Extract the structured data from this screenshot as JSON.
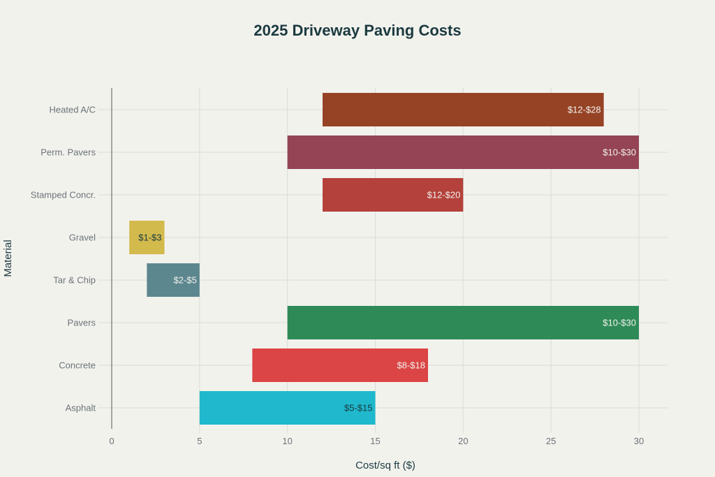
{
  "chart_data": {
    "type": "bar",
    "orientation": "horizontal",
    "title": "2025 Driveway Paving Costs",
    "xlabel": "Cost/sq ft ($)",
    "ylabel": "Material",
    "xlim": [
      0,
      31.5
    ],
    "xticks": [
      0,
      5,
      10,
      15,
      20,
      25,
      30
    ],
    "grid": true,
    "categories": [
      "Asphalt",
      "Concrete",
      "Pavers",
      "Tar & Chip",
      "Gravel",
      "Stamped Concr.",
      "Perm. Pavers",
      "Heated A/C"
    ],
    "ranges": [
      {
        "material": "Asphalt",
        "low": 5,
        "high": 15,
        "label": "$5-$15",
        "color": "#1fb8cd",
        "label_color": "#1b3a40"
      },
      {
        "material": "Concrete",
        "low": 8,
        "high": 18,
        "label": "$8-$18",
        "color": "#db4545",
        "label_color": "#f2f2ed"
      },
      {
        "material": "Pavers",
        "low": 10,
        "high": 30,
        "label": "$10-$30",
        "color": "#2e8b57",
        "label_color": "#f2f2ed"
      },
      {
        "material": "Tar & Chip",
        "low": 2,
        "high": 5,
        "label": "$2-$5",
        "color": "#5d878f",
        "label_color": "#f2f2ed"
      },
      {
        "material": "Gravel",
        "low": 1,
        "high": 3,
        "label": "$1-$3",
        "color": "#d2ba4c",
        "label_color": "#1b3a40"
      },
      {
        "material": "Stamped Concr.",
        "low": 12,
        "high": 20,
        "label": "$12-$20",
        "color": "#b4413c",
        "label_color": "#f2f2ed"
      },
      {
        "material": "Perm. Pavers",
        "low": 10,
        "high": 30,
        "label": "$10-$30",
        "color": "#944454",
        "label_color": "#f2f2ed"
      },
      {
        "material": "Heated A/C",
        "low": 12,
        "high": 28,
        "label": "$12-$28",
        "color": "#964325",
        "label_color": "#f2f2ed"
      }
    ]
  }
}
